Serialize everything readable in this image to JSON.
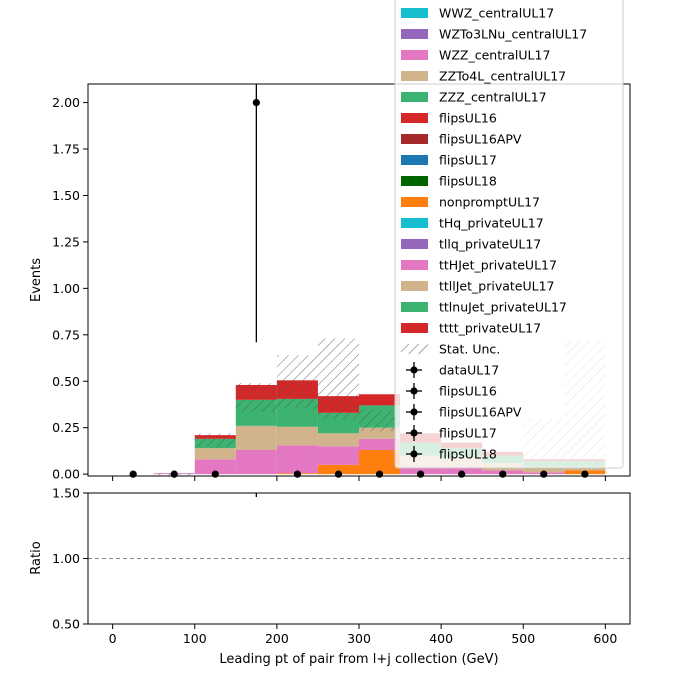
{
  "chart_data": [
    {
      "type": "bar",
      "stacked": true,
      "title": "",
      "xlabel": "",
      "ylabel": "Events",
      "xlim": [
        -30,
        630
      ],
      "ylim": [
        -0.01,
        2.1
      ],
      "x_ticks": [
        0,
        100,
        200,
        300,
        400,
        500,
        600
      ],
      "y_ticks": [
        0.0,
        0.25,
        0.5,
        0.75,
        1.0,
        1.25,
        1.5,
        1.75,
        2.0
      ],
      "y_tick_labels": [
        "0.00",
        "0.25",
        "0.50",
        "0.75",
        "1.00",
        "1.25",
        "1.50",
        "1.75",
        "2.00"
      ],
      "bin_edges": [
        0,
        50,
        100,
        150,
        200,
        250,
        300,
        350,
        400,
        450,
        500,
        550,
        600
      ],
      "series": [
        {
          "name": "nonpromptUL17",
          "color": "#ff7f0e",
          "values": [
            0,
            0,
            0,
            0,
            0.005,
            0.05,
            0.13,
            0,
            0,
            0,
            0,
            0.02,
            0.02
          ]
        },
        {
          "name": "ttHJet_privateUL17",
          "color": "#e377c2",
          "values": [
            0,
            0.005,
            0.08,
            0.13,
            0.15,
            0.1,
            0.06,
            0.04,
            0.04,
            0.02,
            0.01,
            0,
            0
          ]
        },
        {
          "name": "ttllJet_privateUL17",
          "color": "#d2b48c",
          "values": [
            0,
            0,
            0.06,
            0.13,
            0.1,
            0.07,
            0.06,
            0.06,
            0.05,
            0.04,
            0.03,
            0.02,
            0.02
          ]
        },
        {
          "name": "ttlnuJet_privateUL17",
          "color": "#3cb371",
          "values": [
            0,
            0,
            0.05,
            0.14,
            0.15,
            0.11,
            0.12,
            0.07,
            0.05,
            0.04,
            0.03,
            0.03,
            0.03
          ]
        },
        {
          "name": "tttt_privateUL17",
          "color": "#d62728",
          "values": [
            0,
            0,
            0.02,
            0.08,
            0.1,
            0.09,
            0.06,
            0.05,
            0.03,
            0.02,
            0.01,
            0.01,
            0.01
          ]
        }
      ],
      "stat_unc_total": [
        0,
        0.005,
        0.22,
        0.49,
        0.64,
        0.73,
        0.33,
        0.22,
        0.17,
        0.12,
        0.3,
        0.72,
        0.47
      ],
      "data_points": {
        "name": "dataUL17",
        "x": [
          25,
          75,
          125,
          175,
          225,
          275,
          325,
          375,
          425,
          475,
          525,
          575
        ],
        "y": [
          0,
          0,
          0,
          2.0,
          0,
          0,
          0,
          0,
          0,
          0,
          0,
          0
        ],
        "yerr": [
          0,
          0,
          0,
          1.29,
          0,
          0,
          0,
          0,
          0,
          0,
          0,
          0
        ]
      },
      "legend": {
        "placement": "top-right",
        "entries": [
          {
            "label": "WWZ_centralUL17",
            "color": "#17becf",
            "kind": "patch"
          },
          {
            "label": "WZTo3LNu_centralUL17",
            "color": "#9467bd",
            "kind": "patch"
          },
          {
            "label": "WZZ_centralUL17",
            "color": "#e377c2",
            "kind": "patch"
          },
          {
            "label": "ZZTo4L_centralUL17",
            "color": "#d2b48c",
            "kind": "patch"
          },
          {
            "label": "ZZZ_centralUL17",
            "color": "#3cb371",
            "kind": "patch"
          },
          {
            "label": "flipsUL16",
            "color": "#d62728",
            "kind": "patch"
          },
          {
            "label": "flipsUL16APV",
            "color": "#a52a2a",
            "kind": "patch"
          },
          {
            "label": "flipsUL17",
            "color": "#1f77b4",
            "kind": "patch"
          },
          {
            "label": "flipsUL18",
            "color": "#006400",
            "kind": "patch"
          },
          {
            "label": "nonpromptUL17",
            "color": "#ff7f0e",
            "kind": "patch"
          },
          {
            "label": "tHq_privateUL17",
            "color": "#17becf",
            "kind": "patch"
          },
          {
            "label": "tllq_privateUL17",
            "color": "#9467bd",
            "kind": "patch"
          },
          {
            "label": "ttHJet_privateUL17",
            "color": "#e377c2",
            "kind": "patch"
          },
          {
            "label": "ttllJet_privateUL17",
            "color": "#d2b48c",
            "kind": "patch"
          },
          {
            "label": "ttlnuJet_privateUL17",
            "color": "#3cb371",
            "kind": "patch"
          },
          {
            "label": "tttt_privateUL17",
            "color": "#d62728",
            "kind": "patch"
          },
          {
            "label": "Stat. Unc.",
            "color": "#777777",
            "kind": "hatch"
          },
          {
            "label": "dataUL17",
            "color": "#000000",
            "kind": "errorbar"
          },
          {
            "label": "flipsUL16",
            "color": "#000000",
            "kind": "errorbar"
          },
          {
            "label": "flipsUL16APV",
            "color": "#000000",
            "kind": "errorbar"
          },
          {
            "label": "flipsUL17",
            "color": "#000000",
            "kind": "errorbar"
          },
          {
            "label": "flipsUL18",
            "color": "#000000",
            "kind": "errorbar"
          }
        ]
      }
    },
    {
      "type": "line",
      "title": "",
      "xlabel": "Leading pt of pair from l+j collection (GeV)",
      "ylabel": "Ratio",
      "xlim": [
        -30,
        630
      ],
      "ylim": [
        0.5,
        1.5
      ],
      "x_ticks": [
        0,
        100,
        200,
        300,
        400,
        500,
        600
      ],
      "x_tick_labels": [
        "0",
        "100",
        "200",
        "300",
        "400",
        "500",
        "600"
      ],
      "y_ticks": [
        0.5,
        1.0,
        1.5
      ],
      "y_tick_labels": [
        "0.50",
        "1.00",
        "1.50"
      ],
      "reference_line": 1.0,
      "grid": false
    }
  ]
}
